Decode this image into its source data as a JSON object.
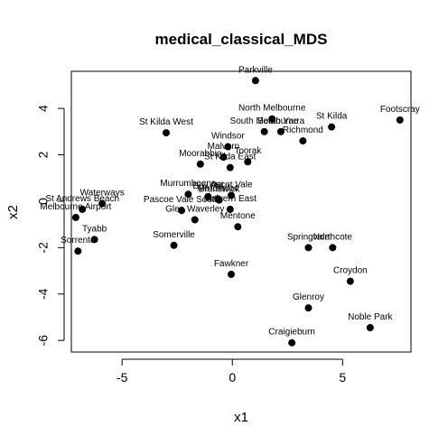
{
  "chart_data": {
    "type": "scatter",
    "title": "medical_classical_MDS",
    "xlabel": "x1",
    "ylabel": "x2",
    "xlim": [
      -7.3,
      8.1
    ],
    "ylim": [
      -6.5,
      5.6
    ],
    "xticks": [
      -5,
      0,
      5
    ],
    "yticks": [
      -6,
      -4,
      -2,
      0,
      2,
      4
    ],
    "xtick_labels": [
      "-5",
      "0",
      "5"
    ],
    "ytick_labels": [
      "-6",
      "-4",
      "-2",
      "0",
      "2",
      "4"
    ],
    "grid": false,
    "legend": "none",
    "marker_color": "#000000",
    "points": [
      {
        "label": "Parkville",
        "x": 1.05,
        "y": 5.2
      },
      {
        "label": "Footscray",
        "x": 7.6,
        "y": 3.5
      },
      {
        "label": "St Kilda",
        "x": 4.5,
        "y": 3.2
      },
      {
        "label": "North Melbourne",
        "x": 1.8,
        "y": 3.55
      },
      {
        "label": "South Melbourne",
        "x": 1.45,
        "y": 3.0
      },
      {
        "label": "South Yarra",
        "x": 2.2,
        "y": 3.0
      },
      {
        "label": "Richmond",
        "x": 3.2,
        "y": 2.6
      },
      {
        "label": "St Kilda West",
        "x": -3.0,
        "y": 2.95
      },
      {
        "label": "Windsor",
        "x": -0.2,
        "y": 2.35
      },
      {
        "label": "Malvern",
        "x": -0.4,
        "y": 1.9
      },
      {
        "label": "Toorak",
        "x": 0.7,
        "y": 1.7
      },
      {
        "label": "Moorabbin",
        "x": -1.45,
        "y": 1.6
      },
      {
        "label": "St Kilda East",
        "x": -0.1,
        "y": 1.45
      },
      {
        "label": "Murrumbeena",
        "x": -2.0,
        "y": 0.3
      },
      {
        "label": "Ascot Vale",
        "x": -0.05,
        "y": 0.25
      },
      {
        "label": "Box Hill",
        "x": -1.1,
        "y": 0.2
      },
      {
        "label": "Brunswick",
        "x": -0.6,
        "y": 0.05
      },
      {
        "label": "Mordialloc",
        "x": -0.65,
        "y": 0.1
      },
      {
        "label": "Pascoe Vale South",
        "x": -2.3,
        "y": -0.4
      },
      {
        "label": "Glen Waverley",
        "x": -1.7,
        "y": -0.8
      },
      {
        "label": "Malvern East",
        "x": -0.1,
        "y": -0.35
      },
      {
        "label": "Mentone",
        "x": 0.25,
        "y": -1.1
      },
      {
        "label": "Waterways",
        "x": -5.9,
        "y": -0.1
      },
      {
        "label": "St Andrews Beach",
        "x": -6.8,
        "y": -0.35
      },
      {
        "label": "Melbourne Airport",
        "x": -7.1,
        "y": -0.7
      },
      {
        "label": "Tyabb",
        "x": -6.25,
        "y": -1.65
      },
      {
        "label": "Sorrento",
        "x": -7.0,
        "y": -2.15
      },
      {
        "label": "Somerville",
        "x": -2.65,
        "y": -1.9
      },
      {
        "label": "Springvale",
        "x": 3.45,
        "y": -2.0
      },
      {
        "label": "Northcote",
        "x": 4.55,
        "y": -2.0
      },
      {
        "label": "Fawkner",
        "x": -0.05,
        "y": -3.15
      },
      {
        "label": "Croydon",
        "x": 5.35,
        "y": -3.45
      },
      {
        "label": "Glenroy",
        "x": 3.45,
        "y": -4.6
      },
      {
        "label": "Noble Park",
        "x": 6.25,
        "y": -5.45
      },
      {
        "label": "Craigieburn",
        "x": 2.7,
        "y": -6.1
      }
    ]
  }
}
